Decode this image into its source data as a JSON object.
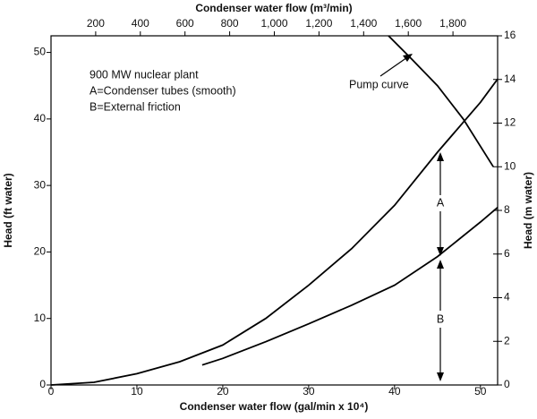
{
  "chart_data": {
    "type": "line",
    "x_label": "Condenser water flow (gal/min x 10⁴)",
    "x2_label": "Condenser water flow (m³/min)",
    "y_label": "Head (ft water)",
    "y2_label": "Head (m water)",
    "xlim": [
      0,
      52
    ],
    "xticks": [
      0,
      10,
      20,
      30,
      40,
      50
    ],
    "x2lim": [
      0,
      2000
    ],
    "x2ticks": [
      200,
      400,
      600,
      800,
      {
        "value": 1000,
        "label": "1,000"
      },
      {
        "value": 1200,
        "label": "1,200"
      },
      {
        "value": 1400,
        "label": "1,400"
      },
      {
        "value": 1600,
        "label": "1,600"
      },
      {
        "value": 1800,
        "label": "1,800"
      }
    ],
    "ylim": [
      0,
      52.5
    ],
    "yticks": [
      0,
      10,
      20,
      30,
      40,
      50
    ],
    "y2lim": [
      0,
      16
    ],
    "y2ticks": [
      0,
      2,
      4,
      6,
      8,
      10,
      12,
      14,
      16
    ],
    "annotations": [
      "900 MW nuclear plant",
      "A=Condenser tubes (smooth)",
      "B=External friction",
      "Pump curve",
      "A",
      "B"
    ],
    "series": [
      {
        "color": "#000000",
        "x": [
          0,
          5,
          10,
          15,
          20,
          25,
          30,
          35,
          40,
          45,
          50,
          52
        ],
        "values": [
          0,
          0.4,
          1.7,
          3.5,
          6,
          10,
          15,
          20.5,
          27,
          35,
          42.5,
          46
        ]
      },
      {
        "color": "#000000",
        "x": [
          17.6,
          20,
          25,
          30,
          35,
          40,
          45,
          50,
          52
        ],
        "values": [
          3,
          4,
          6.5,
          9.2,
          12,
          15,
          19.3,
          24.5,
          26.7
        ]
      },
      {
        "color": "#000000",
        "x": [
          39.3,
          42,
          45,
          48,
          51.5
        ],
        "values": [
          52.5,
          49,
          45,
          40,
          32.8
        ]
      }
    ]
  }
}
